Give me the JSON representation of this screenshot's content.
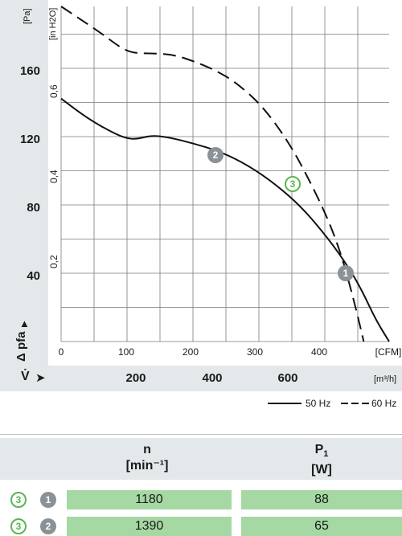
{
  "chart_data": {
    "type": "line",
    "title": "",
    "y_unit_primary": "[Pa]",
    "y_unit_secondary": "[in H2O]",
    "x_unit_primary": "[CFM]",
    "x_unit_secondary": "[m³/h]",
    "ylabel": "Δ pfa",
    "xlabel": "V̇",
    "ylim_pa": [
      0,
      200
    ],
    "xlim_cfm": [
      0,
      490
    ],
    "grid": true,
    "y_ticks_pa": [
      "160",
      "120",
      "80",
      "40"
    ],
    "y_ticks_inh2o": [
      "0,6",
      "0,4",
      "0,2"
    ],
    "x_ticks_cfm": [
      "0",
      "100",
      "200",
      "300",
      "400",
      "[CFM]"
    ],
    "x_ticks_m3h": [
      "200",
      "400",
      "600",
      "[m³/h]"
    ],
    "series": [
      {
        "name": "50 Hz",
        "style": "solid",
        "x": [
          0,
          40,
          80,
          100,
          115,
          135,
          160,
          200,
          240,
          280,
          320,
          360,
          400,
          430,
          450,
          470,
          490
        ],
        "y": [
          145,
          133,
          124,
          121,
          121,
          123,
          122,
          118,
          113,
          105,
          94,
          80,
          61,
          44,
          30,
          13,
          0
        ]
      },
      {
        "name": "60 Hz",
        "style": "dashed",
        "x": [
          0,
          30,
          60,
          90,
          110,
          140,
          170,
          200,
          230,
          260,
          300,
          340,
          370,
          400,
          420,
          435,
          445,
          452
        ],
        "y": [
          200,
          192,
          184,
          175,
          172,
          172,
          171,
          167,
          162,
          155,
          141,
          119,
          97,
          72,
          50,
          28,
          12,
          0
        ]
      }
    ],
    "annotations": [
      {
        "label": "1",
        "x": 440,
        "y": 38,
        "style": "filled"
      },
      {
        "label": "2",
        "x": 240,
        "y": 115,
        "style": "filled"
      },
      {
        "label": "3",
        "x": 360,
        "y": 92,
        "style": "outline"
      }
    ],
    "legend_position": "bottom-right"
  },
  "table": {
    "headers": [
      {
        "main": "n",
        "unit": "[min⁻¹]"
      },
      {
        "main": "P",
        "sub": "1",
        "unit": "[W]"
      }
    ],
    "rows": [
      {
        "curve": "3",
        "point": "1",
        "n": "1180",
        "p1": "88"
      },
      {
        "curve": "3",
        "point": "2",
        "n": "1390",
        "p1": "65"
      }
    ]
  },
  "colors": {
    "band": "#e3e8ea",
    "grid": "#7a7a7a",
    "curve": "#111111",
    "badge_gray": "#8a9298",
    "badge_green": "#5bb553",
    "cell_green": "#a5d8a2"
  }
}
